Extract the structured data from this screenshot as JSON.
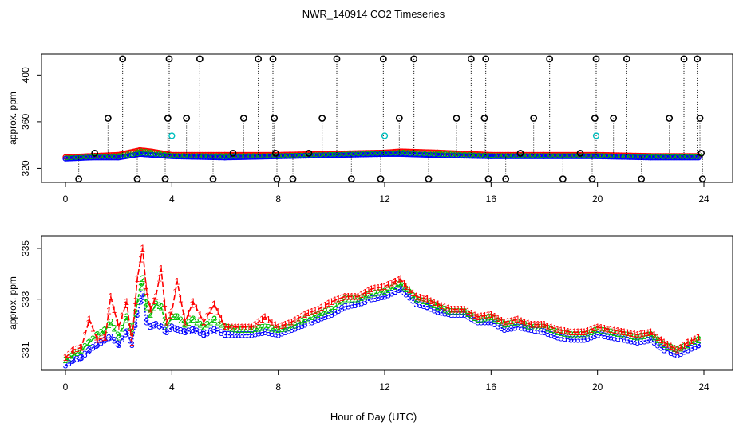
{
  "title": "NWR_140914  CO2 Timeseries",
  "xlabel": "Hour of Day (UTC)",
  "colors": {
    "series1": "#ff0000",
    "series2": "#00c000",
    "series3": "#0000ff",
    "outlier": "#000000",
    "flag": "#00bfbf"
  },
  "chart_data": [
    {
      "type": "scatter",
      "panel": "top",
      "ylabel": "approx. ppm",
      "xlim": [
        0,
        24
      ],
      "ylim": [
        308,
        418
      ],
      "xticks": [
        0,
        4,
        8,
        12,
        16,
        20,
        24
      ],
      "yticks": [
        320,
        360,
        400
      ],
      "baseline_series": [
        {
          "name": "1",
          "x": [
            0,
            1,
            2,
            2.8,
            3.2,
            4,
            6,
            8,
            10,
            12,
            12.6,
            14,
            16,
            18,
            20,
            22,
            23.8
          ],
          "y": [
            329,
            330,
            331,
            335,
            334,
            331,
            331,
            331,
            332,
            333,
            334,
            333,
            331,
            331,
            331,
            330,
            330
          ]
        },
        {
          "name": "3",
          "x": [
            0,
            1,
            2,
            2.8,
            4,
            6,
            8,
            10,
            12,
            12.6,
            14,
            16,
            18,
            20,
            22,
            23.8
          ],
          "y": [
            329,
            330,
            330,
            333,
            331,
            330,
            331,
            332,
            333,
            333,
            332,
            331,
            331,
            331,
            330,
            330
          ]
        }
      ],
      "outliers": [
        {
          "x": 0.5,
          "y": 311
        },
        {
          "x": 1.1,
          "y": 333
        },
        {
          "x": 1.6,
          "y": 363
        },
        {
          "x": 2.15,
          "y": 414
        },
        {
          "x": 2.7,
          "y": 311
        },
        {
          "x": 3.75,
          "y": 311
        },
        {
          "x": 3.85,
          "y": 363
        },
        {
          "x": 3.9,
          "y": 414
        },
        {
          "x": 4.55,
          "y": 363
        },
        {
          "x": 5.05,
          "y": 414
        },
        {
          "x": 5.55,
          "y": 311
        },
        {
          "x": 6.3,
          "y": 333
        },
        {
          "x": 6.7,
          "y": 363
        },
        {
          "x": 7.25,
          "y": 414
        },
        {
          "x": 7.8,
          "y": 414
        },
        {
          "x": 7.85,
          "y": 363
        },
        {
          "x": 7.9,
          "y": 333
        },
        {
          "x": 7.95,
          "y": 311
        },
        {
          "x": 8.55,
          "y": 311
        },
        {
          "x": 9.15,
          "y": 333
        },
        {
          "x": 9.65,
          "y": 363
        },
        {
          "x": 10.2,
          "y": 414
        },
        {
          "x": 10.75,
          "y": 311
        },
        {
          "x": 11.85,
          "y": 311
        },
        {
          "x": 11.95,
          "y": 414
        },
        {
          "x": 12.55,
          "y": 363
        },
        {
          "x": 13.1,
          "y": 414
        },
        {
          "x": 13.65,
          "y": 311
        },
        {
          "x": 14.7,
          "y": 363
        },
        {
          "x": 15.25,
          "y": 414
        },
        {
          "x": 15.75,
          "y": 363
        },
        {
          "x": 15.8,
          "y": 414
        },
        {
          "x": 15.9,
          "y": 311
        },
        {
          "x": 16.55,
          "y": 311
        },
        {
          "x": 17.1,
          "y": 333
        },
        {
          "x": 17.6,
          "y": 363
        },
        {
          "x": 18.2,
          "y": 414
        },
        {
          "x": 18.7,
          "y": 311
        },
        {
          "x": 19.35,
          "y": 333
        },
        {
          "x": 19.8,
          "y": 311
        },
        {
          "x": 19.9,
          "y": 363
        },
        {
          "x": 19.95,
          "y": 414
        },
        {
          "x": 20.6,
          "y": 363
        },
        {
          "x": 21.1,
          "y": 414
        },
        {
          "x": 21.65,
          "y": 311
        },
        {
          "x": 22.7,
          "y": 363
        },
        {
          "x": 23.25,
          "y": 414
        },
        {
          "x": 23.75,
          "y": 414
        },
        {
          "x": 23.85,
          "y": 363
        },
        {
          "x": 23.9,
          "y": 333
        },
        {
          "x": 23.95,
          "y": 311
        }
      ],
      "flagged": [
        {
          "x": 4.0,
          "y": 348
        },
        {
          "x": 12.0,
          "y": 348
        },
        {
          "x": 19.95,
          "y": 348
        }
      ]
    },
    {
      "type": "line",
      "panel": "bottom",
      "ylabel": "approx. ppm",
      "xlim": [
        0,
        24
      ],
      "ylim": [
        330.2,
        335.5
      ],
      "xticks": [
        0,
        4,
        8,
        12,
        16,
        20,
        24
      ],
      "yticks": [
        331,
        333,
        335
      ],
      "series": [
        {
          "name": "1",
          "x": [
            0,
            0.3,
            0.6,
            0.9,
            1.2,
            1.5,
            1.7,
            2.0,
            2.3,
            2.5,
            2.7,
            2.9,
            3.05,
            3.2,
            3.4,
            3.6,
            3.8,
            4.0,
            4.2,
            4.5,
            4.8,
            5.2,
            5.6,
            6.0,
            6.5,
            7.0,
            7.5,
            8.0,
            8.5,
            9.0,
            9.5,
            10.0,
            10.5,
            11.0,
            11.5,
            12.0,
            12.4,
            12.6,
            12.8,
            13.2,
            13.6,
            14.0,
            14.5,
            15.0,
            15.5,
            16.0,
            16.5,
            17.0,
            17.5,
            18.0,
            18.5,
            19.0,
            19.5,
            20.0,
            20.5,
            21.0,
            21.5,
            22.0,
            22.5,
            23.0,
            23.4,
            23.8
          ],
          "y": [
            330.7,
            331.0,
            331.1,
            332.2,
            331.4,
            331.5,
            333.1,
            331.9,
            332.9,
            331.3,
            333.8,
            335.0,
            333.3,
            332.6,
            333.1,
            334.2,
            332.1,
            332.5,
            333.7,
            332.1,
            332.9,
            332.1,
            332.8,
            331.9,
            331.9,
            331.9,
            332.3,
            331.9,
            332.1,
            332.4,
            332.6,
            332.9,
            333.1,
            333.1,
            333.4,
            333.5,
            333.7,
            333.8,
            333.5,
            333.1,
            333.0,
            332.8,
            332.6,
            332.6,
            332.3,
            332.4,
            332.1,
            332.2,
            332.0,
            332.0,
            331.8,
            331.7,
            331.7,
            331.9,
            331.8,
            331.7,
            331.6,
            331.7,
            331.3,
            331.0,
            331.3,
            331.5
          ]
        },
        {
          "name": "2",
          "x": [
            0,
            0.3,
            0.6,
            0.9,
            1.2,
            1.5,
            1.7,
            2.0,
            2.3,
            2.5,
            2.7,
            2.9,
            3.05,
            3.2,
            3.4,
            3.6,
            3.8,
            4.0,
            4.2,
            4.5,
            4.8,
            5.2,
            5.6,
            6.0,
            6.5,
            7.0,
            7.5,
            8.0,
            8.5,
            9.0,
            9.5,
            10.0,
            10.5,
            11.0,
            11.5,
            12.0,
            12.4,
            12.6,
            12.8,
            13.2,
            13.6,
            14.0,
            14.5,
            15.0,
            15.5,
            16.0,
            16.5,
            17.0,
            17.5,
            18.0,
            18.5,
            19.0,
            19.5,
            20.0,
            20.5,
            21.0,
            21.5,
            22.0,
            22.5,
            23.0,
            23.4,
            23.8
          ],
          "y": [
            330.6,
            330.8,
            331.0,
            331.3,
            331.6,
            331.8,
            332.1,
            331.5,
            332.3,
            331.7,
            332.9,
            333.8,
            332.7,
            332.4,
            332.8,
            332.7,
            331.9,
            332.3,
            332.3,
            332.0,
            332.2,
            331.9,
            332.2,
            331.9,
            331.8,
            331.8,
            331.9,
            331.8,
            331.9,
            332.2,
            332.4,
            332.6,
            333.0,
            333.0,
            333.2,
            333.3,
            333.5,
            333.6,
            333.4,
            333.0,
            332.9,
            332.7,
            332.5,
            332.5,
            332.2,
            332.3,
            332.0,
            332.1,
            331.9,
            331.9,
            331.7,
            331.6,
            331.6,
            331.8,
            331.7,
            331.6,
            331.5,
            331.6,
            331.2,
            331.0,
            331.2,
            331.4
          ]
        },
        {
          "name": "3",
          "x": [
            0,
            0.3,
            0.6,
            0.9,
            1.2,
            1.5,
            1.7,
            2.0,
            2.3,
            2.5,
            2.7,
            2.9,
            3.05,
            3.2,
            3.4,
            3.6,
            3.8,
            4.0,
            4.2,
            4.5,
            4.8,
            5.2,
            5.6,
            6.0,
            6.5,
            7.0,
            7.5,
            8.0,
            8.5,
            9.0,
            9.5,
            10.0,
            10.5,
            11.0,
            11.5,
            12.0,
            12.4,
            12.6,
            12.8,
            13.2,
            13.6,
            14.0,
            14.5,
            15.0,
            15.5,
            16.0,
            16.5,
            17.0,
            17.5,
            18.0,
            18.5,
            19.0,
            19.5,
            20.0,
            20.5,
            21.0,
            21.5,
            22.0,
            22.5,
            23.0,
            23.4,
            23.8
          ],
          "y": [
            330.4,
            330.6,
            330.7,
            331.0,
            331.2,
            331.4,
            331.5,
            331.2,
            331.7,
            331.2,
            332.4,
            333.2,
            332.1,
            331.9,
            332.0,
            331.9,
            331.7,
            331.9,
            331.8,
            331.7,
            331.8,
            331.6,
            331.8,
            331.6,
            331.6,
            331.6,
            331.7,
            331.6,
            331.8,
            332.0,
            332.2,
            332.4,
            332.7,
            332.8,
            333.0,
            333.1,
            333.3,
            333.4,
            333.2,
            332.8,
            332.7,
            332.5,
            332.4,
            332.4,
            332.1,
            332.1,
            331.8,
            331.9,
            331.8,
            331.7,
            331.5,
            331.4,
            331.4,
            331.6,
            331.5,
            331.4,
            331.3,
            331.4,
            331.0,
            330.8,
            331.0,
            331.2
          ]
        }
      ]
    }
  ]
}
